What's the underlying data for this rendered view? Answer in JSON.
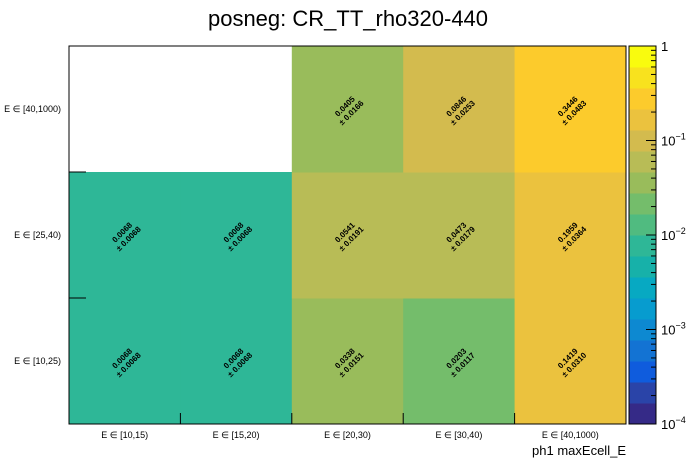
{
  "chart_data": {
    "type": "heatmap",
    "title": "posneg: CR_TT_rho320-440",
    "xlabel": "ph1 maxEcell_E",
    "ylabel": "",
    "x_categories": [
      "E ∈ [10,15)",
      "E ∈ [15,20)",
      "E ∈ [20,30)",
      "E ∈ [30,40)",
      "E ∈ [40,1000)"
    ],
    "y_categories": [
      "E ∈ [10,25)",
      "E ∈ [25,40)",
      "E ∈ [40,1000)"
    ],
    "values": [
      [
        0.0068,
        0.0068,
        0.0338,
        0.0203,
        0.1419
      ],
      [
        0.0068,
        0.0068,
        0.0541,
        0.0473,
        0.1959
      ],
      [
        null,
        null,
        0.0405,
        0.0846,
        0.3446
      ]
    ],
    "errors": [
      [
        0.0068,
        0.0068,
        0.0151,
        0.0117,
        0.031
      ],
      [
        0.0068,
        0.0068,
        0.0191,
        0.0179,
        0.0364
      ],
      [
        null,
        null,
        0.0166,
        0.0253,
        0.0483
      ]
    ],
    "value_labels": [
      [
        "0.0068",
        "0.0068",
        "0.0338",
        "0.0203",
        "0.1419"
      ],
      [
        "0.0068",
        "0.0068",
        "0.0541",
        "0.0473",
        "0.1959"
      ],
      [
        null,
        null,
        "0.0405",
        "0.0846",
        "0.3446"
      ]
    ],
    "error_labels": [
      [
        "± 0.0068",
        "± 0.0068",
        "± 0.0151",
        "± 0.0117",
        "± 0.0310"
      ],
      [
        "± 0.0068",
        "± 0.0068",
        "± 0.0191",
        "± 0.0179",
        "± 0.0364"
      ],
      [
        null,
        null,
        "± 0.0166",
        "± 0.0253",
        "± 0.0483"
      ]
    ],
    "z_scale": "log",
    "zlim": [
      0.0001,
      1
    ],
    "colorbar_ticks": [
      {
        "value": 1,
        "base": "1",
        "exp": ""
      },
      {
        "value": 0.1,
        "base": "10",
        "exp": "−1"
      },
      {
        "value": 0.01,
        "base": "10",
        "exp": "−2"
      },
      {
        "value": 0.001,
        "base": "10",
        "exp": "−3"
      },
      {
        "value": 0.0001,
        "base": "10",
        "exp": "−4"
      }
    ],
    "palette": [
      "#352a87",
      "#2a44a8",
      "#0f5cdd",
      "#1373d3",
      "#0d89d1",
      "#079ccf",
      "#07a9c2",
      "#17b1a9",
      "#2eb797",
      "#50bb80",
      "#74bd6b",
      "#99bc5b",
      "#b8bc56",
      "#d3bb4e",
      "#ebc23e",
      "#fccb2c",
      "#f8e21e",
      "#f9fb0e"
    ],
    "grid": false,
    "legend": "colorbar-right"
  }
}
